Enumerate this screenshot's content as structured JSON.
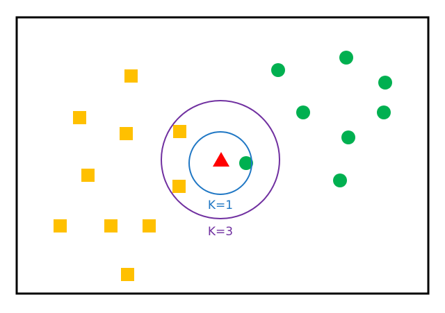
{
  "labels": {
    "inner_circle": "K=1",
    "outer_circle": "K=3"
  },
  "colors": {
    "frame": "#000000",
    "class_square": "#FFC000",
    "class_circle": "#00B050",
    "query_point": "#FF0000",
    "inner_circle": "#1F77C4",
    "outer_circle": "#7030A0"
  },
  "classes": {
    "squares": {
      "shape": "square",
      "count": 10
    },
    "circles": {
      "shape": "circle",
      "count": 8
    }
  },
  "query": {
    "shape": "triangle"
  }
}
